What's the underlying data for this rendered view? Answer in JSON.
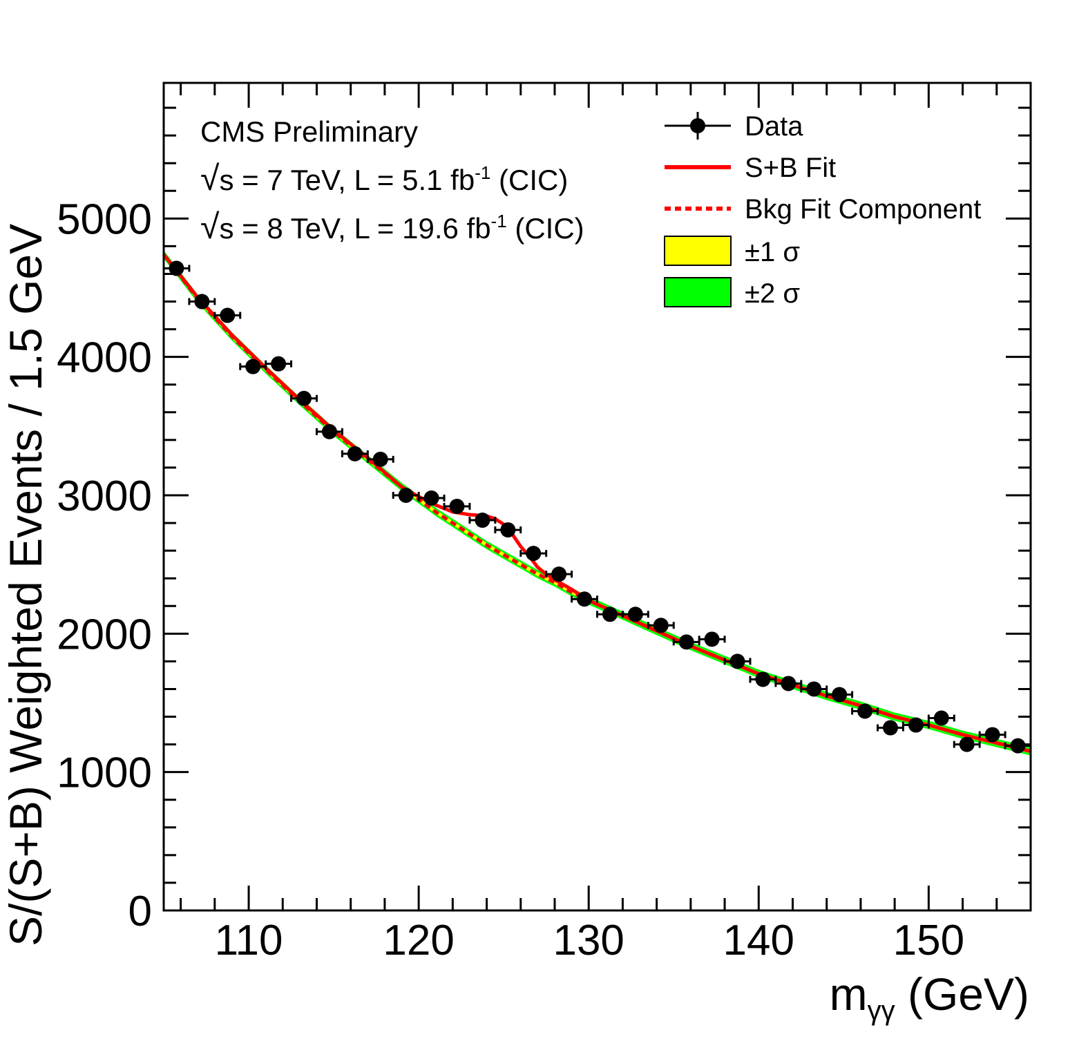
{
  "chart_data": {
    "type": "scatter",
    "xlabel_main": "m",
    "xlabel_sub": "γγ",
    "xlabel_unit": "(GeV)",
    "ylabel": "S/(S+B) Weighted Events / 1.5 GeV",
    "xlim": [
      105,
      156
    ],
    "ylim": [
      0,
      5980
    ],
    "x_ticks": [
      110,
      120,
      130,
      140,
      150
    ],
    "y_ticks": [
      0,
      1000,
      2000,
      3000,
      4000,
      5000
    ],
    "x_tick_labels": [
      "110",
      "120",
      "130",
      "140",
      "150"
    ],
    "y_tick_labels": [
      "0",
      "1000",
      "2000",
      "3000",
      "4000",
      "5000"
    ],
    "annotations": {
      "line1": "CMS Preliminary",
      "line2_prefix": "s",
      "line2_main": " = 7 TeV, L = 5.1 fb",
      "line2_sup": "-1",
      "line2_suffix": " (CIC)",
      "line3_prefix": "s",
      "line3_main": " = 8 TeV, L = 19.6 fb",
      "line3_sup": "-1",
      "line3_suffix": " (CIC)"
    },
    "legend": {
      "position": "top-right",
      "entries": [
        {
          "label": "Data",
          "style": "marker"
        },
        {
          "label": "S+B Fit",
          "style": "solid-line"
        },
        {
          "label": "Bkg Fit Component",
          "style": "dashed-line"
        },
        {
          "label": "±1 σ",
          "style": "yellow-box"
        },
        {
          "label": "±2 σ",
          "style": "green-box"
        }
      ]
    },
    "colors": {
      "data": "#000000",
      "sb_fit": "#ff0000",
      "bkg_fit": "#ff0000",
      "band_1sigma": "#ffff00",
      "band_2sigma": "#00ff00"
    },
    "series": [
      {
        "name": "Data",
        "x_halfwidth": 0.75,
        "x": [
          105.75,
          107.25,
          108.75,
          110.25,
          111.75,
          113.25,
          114.75,
          116.25,
          117.75,
          119.25,
          120.75,
          122.25,
          123.75,
          125.25,
          126.75,
          128.25,
          129.75,
          131.25,
          132.75,
          134.25,
          135.75,
          137.25,
          138.75,
          140.25,
          141.75,
          143.25,
          144.75,
          146.25,
          147.75,
          149.25,
          150.75,
          152.25,
          153.75,
          155.25
        ],
        "y": [
          4640,
          4400,
          4300,
          3930,
          3950,
          3700,
          3460,
          3300,
          3260,
          3000,
          2980,
          2920,
          2820,
          2750,
          2580,
          2430,
          2250,
          2140,
          2140,
          2060,
          1940,
          1960,
          1800,
          1670,
          1640,
          1600,
          1560,
          1440,
          1320,
          1340,
          1390,
          1200,
          1270,
          1190
        ],
        "yerr": [
          55,
          55,
          50,
          50,
          50,
          50,
          45,
          45,
          45,
          40,
          40,
          40,
          40,
          40,
          40,
          35,
          35,
          35,
          35,
          35,
          30,
          30,
          30,
          30,
          30,
          30,
          30,
          28,
          28,
          28,
          28,
          26,
          26,
          26
        ]
      },
      {
        "name": "S+B Fit",
        "x": [
          105,
          107,
          109,
          111,
          113,
          115,
          117,
          119,
          120,
          121,
          122,
          123,
          124,
          124.5,
          125,
          125.5,
          126,
          126.5,
          127,
          127.5,
          128,
          129,
          130,
          132,
          134,
          136,
          138,
          140,
          142,
          144,
          146,
          148,
          150,
          152,
          154,
          156
        ],
        "y": [
          4740,
          4430,
          4160,
          3920,
          3690,
          3470,
          3270,
          3060,
          2990,
          2930,
          2880,
          2860,
          2850,
          2830,
          2790,
          2720,
          2630,
          2560,
          2480,
          2430,
          2390,
          2320,
          2240,
          2130,
          2020,
          1910,
          1810,
          1710,
          1630,
          1550,
          1480,
          1400,
          1340,
          1270,
          1210,
          1150
        ]
      },
      {
        "name": "Bkg Fit Component",
        "x": [
          105,
          107,
          109,
          111,
          113,
          115,
          117,
          119,
          120,
          121,
          122,
          123,
          124,
          125,
          126,
          127,
          128,
          129,
          130,
          132,
          134,
          136,
          138,
          140,
          142,
          144,
          146,
          148,
          150,
          152,
          154,
          156
        ],
        "y": [
          4740,
          4420,
          4150,
          3910,
          3680,
          3460,
          3260,
          3060,
          2970,
          2880,
          2800,
          2720,
          2640,
          2570,
          2500,
          2430,
          2370,
          2300,
          2240,
          2130,
          2020,
          1910,
          1810,
          1710,
          1630,
          1550,
          1480,
          1400,
          1340,
          1270,
          1210,
          1150
        ]
      }
    ]
  }
}
